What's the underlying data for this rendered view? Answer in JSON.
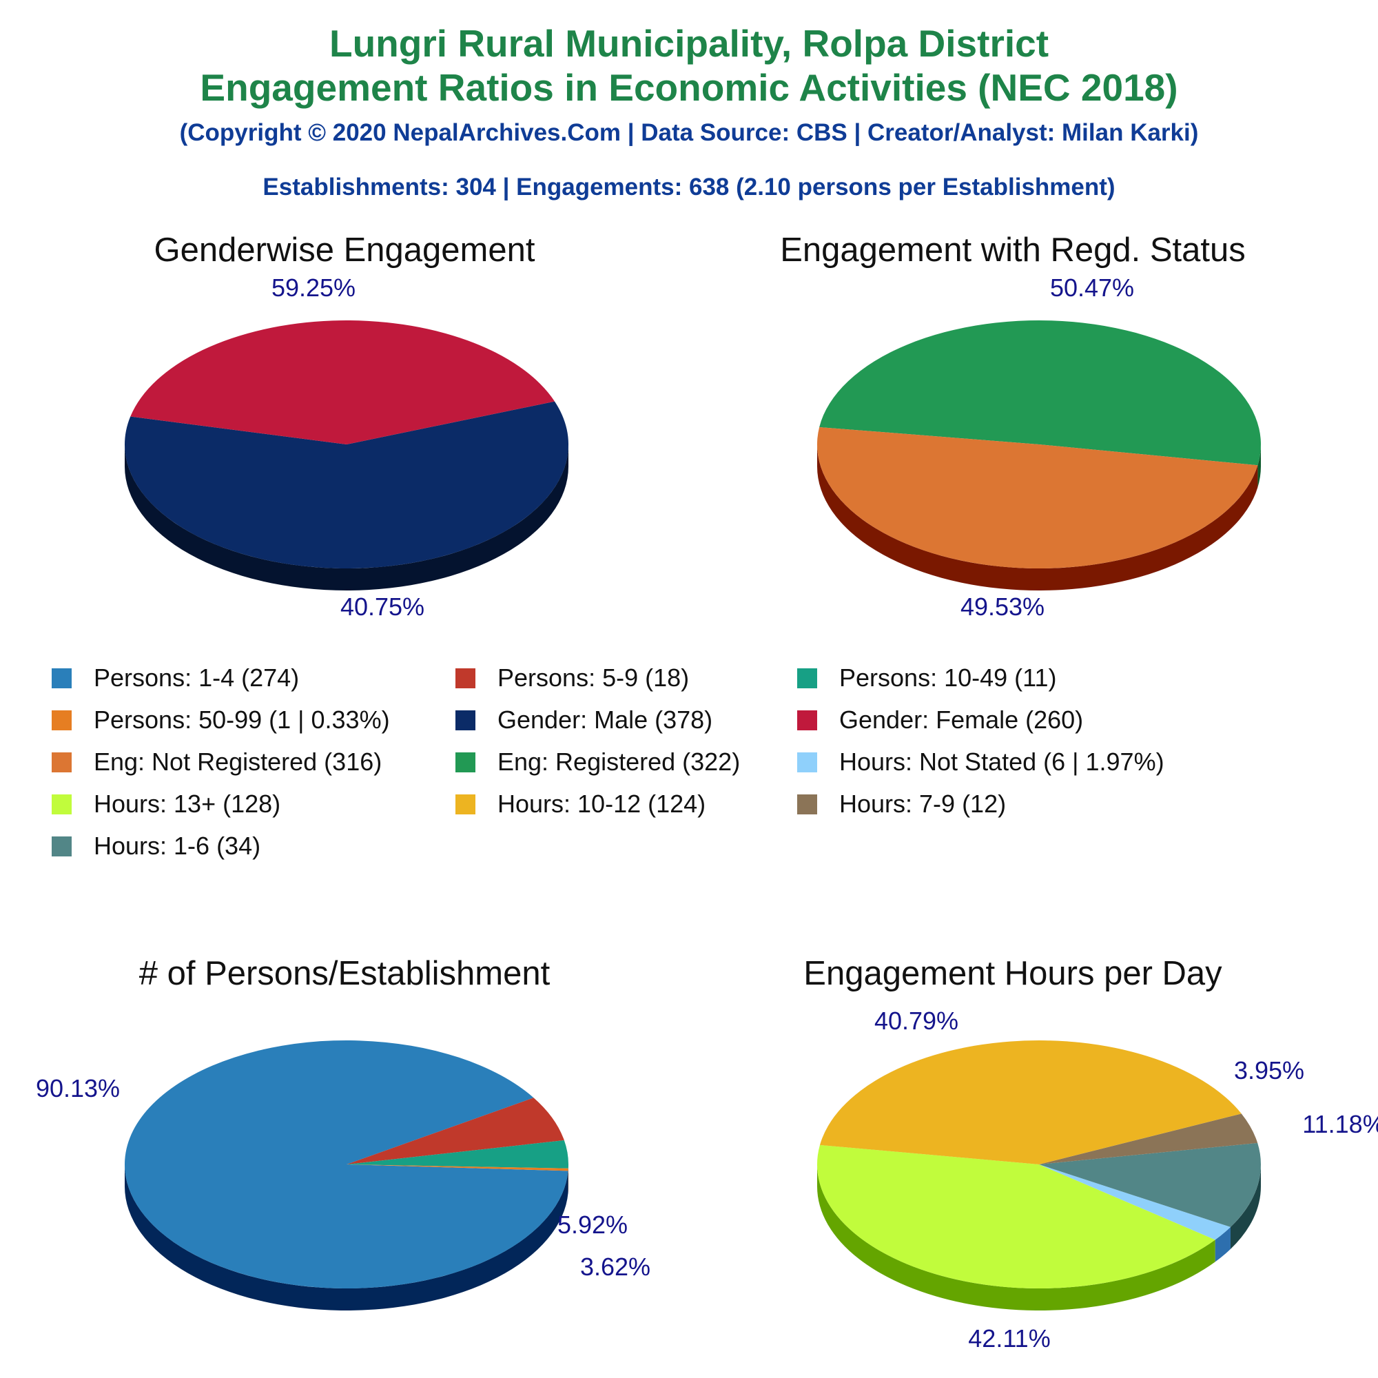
{
  "header": {
    "title_line1": "Lungri Rural Municipality, Rolpa District",
    "title_line2": "Engagement Ratios in Economic Activities (NEC 2018)",
    "copyright": "(Copyright © 2020 NepalArchives.Com | Data Source: CBS | Creator/Analyst: Milan Karki)",
    "summary": "Establishments: 304 | Engagements: 638 (2.10 persons per Establishment)"
  },
  "legend": [
    {
      "label": "Persons: 1-4 (274)",
      "color": "#2a7fba"
    },
    {
      "label": "Persons: 5-9 (18)",
      "color": "#c0392b"
    },
    {
      "label": "Persons: 10-49 (11)",
      "color": "#17a085"
    },
    {
      "label": "Persons: 50-99 (1 | 0.33%)",
      "color": "#e67e22"
    },
    {
      "label": "Gender: Male (378)",
      "color": "#0b2b67"
    },
    {
      "label": "Gender: Female (260)",
      "color": "#c0193c"
    },
    {
      "label": "Eng: Not Registered (316)",
      "color": "#dc7633"
    },
    {
      "label": "Eng: Registered (322)",
      "color": "#229954"
    },
    {
      "label": "Hours: Not Stated (6 | 1.97%)",
      "color": "#8fd0fb"
    },
    {
      "label": "Hours: 13+ (128)",
      "color": "#c1fc3c"
    },
    {
      "label": "Hours: 10-12 (124)",
      "color": "#edb421"
    },
    {
      "label": "Hours: 7-9 (12)",
      "color": "#8b7457"
    },
    {
      "label": "Hours: 1-6 (34)",
      "color": "#528687"
    }
  ],
  "chart_data": [
    {
      "type": "pie",
      "title": "Genderwise Engagement",
      "slices": [
        {
          "name": "Gender: Male",
          "value": 378,
          "label": "59.25%",
          "color": "#0b2b67",
          "side": "#04132f"
        },
        {
          "name": "Gender: Female",
          "value": 260,
          "label": "40.75%",
          "color": "#c0193c",
          "side": "#670000"
        }
      ]
    },
    {
      "type": "pie",
      "title": "Engagement with Regd. Status",
      "slices": [
        {
          "name": "Eng: Registered",
          "value": 322,
          "label": "50.47%",
          "color": "#229954",
          "side": "#0c5a2b"
        },
        {
          "name": "Eng: Not Registered",
          "value": 316,
          "label": "49.53%",
          "color": "#dc7633",
          "side": "#7a1800"
        }
      ]
    },
    {
      "type": "pie",
      "title": "# of Persons/Establishment",
      "slices": [
        {
          "name": "Persons: 1-4",
          "value": 274,
          "label": "90.13%",
          "color": "#2a7fba",
          "side": "#022659"
        },
        {
          "name": "Persons: 5-9",
          "value": 18,
          "label": "5.92%",
          "color": "#c0392b",
          "side": "#6a0000"
        },
        {
          "name": "Persons: 10-49",
          "value": 11,
          "label": "3.62%",
          "color": "#17a085",
          "side": "#023e30"
        },
        {
          "name": "Persons: 50-99",
          "value": 1,
          "label": "",
          "color": "#e67e22",
          "side": "#8a3a00"
        }
      ]
    },
    {
      "type": "pie",
      "title": "Engagement Hours per Day",
      "slices": [
        {
          "name": "Hours: 13+",
          "value": 128,
          "label": "42.11%",
          "color": "#c1fc3c",
          "side": "#64a500"
        },
        {
          "name": "Hours: Not Stated",
          "value": 6,
          "label": "",
          "color": "#8fd0fb",
          "side": "#2d6fae"
        },
        {
          "name": "Hours: 1-6",
          "value": 34,
          "label": "11.18%",
          "color": "#528687",
          "side": "#1c4446"
        },
        {
          "name": "Hours: 7-9",
          "value": 12,
          "label": "3.95%",
          "color": "#8b7457",
          "side": "#4a3620"
        },
        {
          "name": "Hours: 10-12",
          "value": 124,
          "label": "40.79%",
          "color": "#edb421",
          "side": "#8a6000"
        }
      ]
    }
  ]
}
